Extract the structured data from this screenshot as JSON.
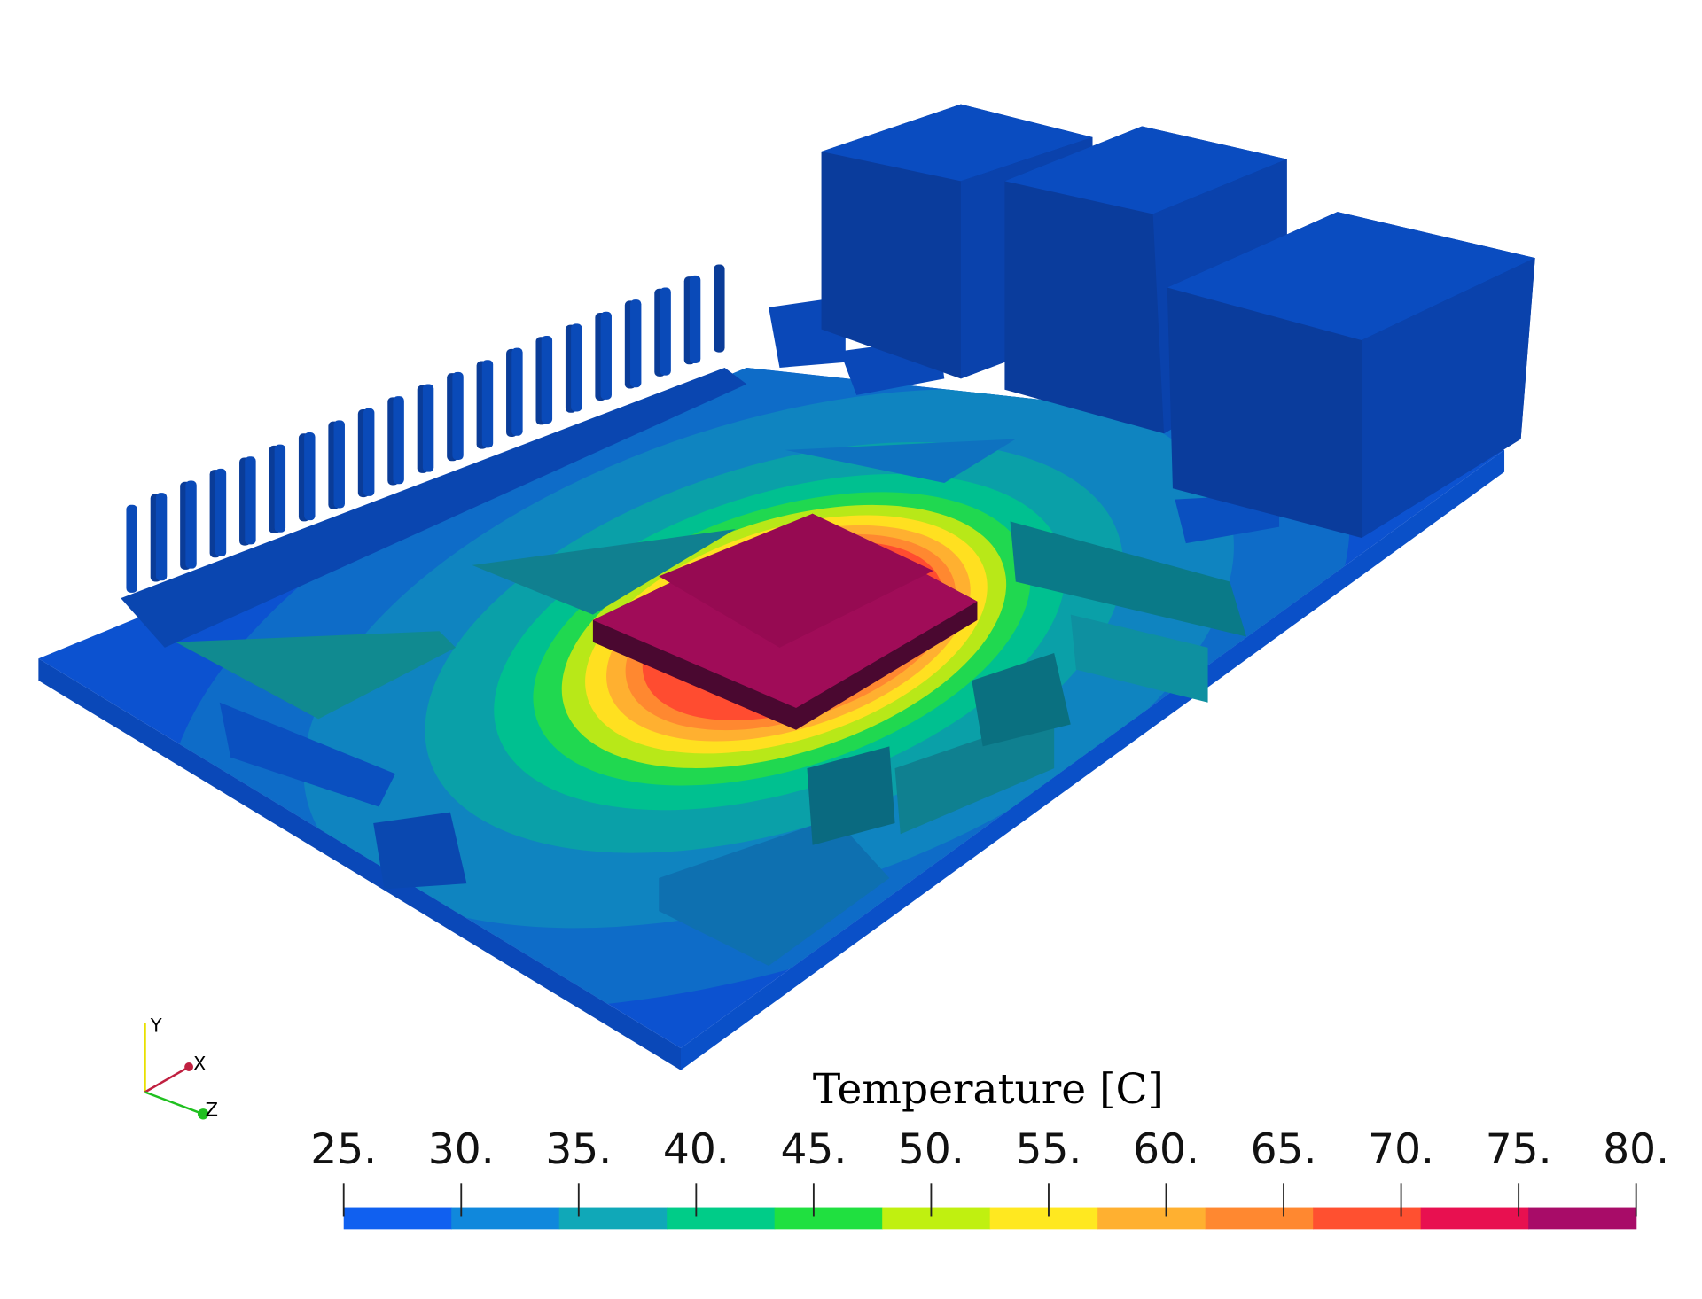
{
  "colorbar": {
    "title": "Temperature [C]",
    "range": [
      25,
      80
    ],
    "ticks": [
      {
        "value": 25,
        "label": "25."
      },
      {
        "value": 30,
        "label": "30."
      },
      {
        "value": 35,
        "label": "35."
      },
      {
        "value": 40,
        "label": "40."
      },
      {
        "value": 45,
        "label": "45."
      },
      {
        "value": 50,
        "label": "50."
      },
      {
        "value": 55,
        "label": "55."
      },
      {
        "value": 60,
        "label": "60."
      },
      {
        "value": 65,
        "label": "65."
      },
      {
        "value": 70,
        "label": "70."
      },
      {
        "value": 75,
        "label": "75."
      },
      {
        "value": 80,
        "label": "80."
      }
    ],
    "colors": [
      "#1060f0",
      "#1088dc",
      "#10a8b8",
      "#00cc88",
      "#20e040",
      "#c0f010",
      "#ffe820",
      "#ffb030",
      "#ff8830",
      "#ff5030",
      "#e81050",
      "#a80c68"
    ]
  },
  "orientation_axes": {
    "x": "X",
    "y": "Y",
    "z": "Z"
  }
}
